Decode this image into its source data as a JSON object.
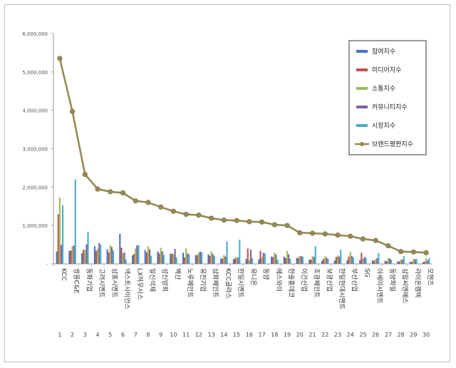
{
  "chart_data": {
    "type": "bar",
    "title": "",
    "xlabel": "",
    "ylabel": "",
    "ylim": [
      0,
      6000000
    ],
    "yticks": [
      "6,000,000",
      "5,000,000",
      "4,000,000",
      "3,000,000",
      "2,000,000",
      "1,000,000",
      "-"
    ],
    "categories": [
      "KCC",
      "쌍용C&E",
      "동화기업",
      "고려시멘트",
      "삼표시멘트",
      "넥스트사이언스",
      "LX하우시스",
      "일신석재",
      "성신양회",
      "벽산",
      "노루페인트",
      "유진기업",
      "삼화페인트",
      "KCC글라스",
      "한일시멘트",
      "유니온",
      "동양",
      "에스와이",
      "한솔홈데코",
      "이건산업",
      "조광페인트",
      "보광산업",
      "한일현대시멘트",
      "부산산업",
      "SG",
      "아세아시멘트",
      "동양파일",
      "삼일씨엔에스",
      "라이온켐텍",
      "모헨즈"
    ],
    "indices": [
      "1",
      "2",
      "3",
      "4",
      "5",
      "6",
      "7",
      "8",
      "9",
      "10",
      "11",
      "12",
      "13",
      "14",
      "15",
      "16",
      "17",
      "18",
      "19",
      "20",
      "21",
      "22",
      "23",
      "24",
      "25",
      "26",
      "27",
      "28",
      "29",
      "30"
    ],
    "series": [
      {
        "name": "참여지수",
        "color": "#4472c4",
        "values": [
          320000,
          340000,
          280000,
          460000,
          380000,
          780000,
          220000,
          360000,
          320000,
          260000,
          290000,
          230000,
          250000,
          140000,
          120000,
          130000,
          120000,
          190000,
          190000,
          150000,
          110000,
          80000,
          90000,
          100000,
          100000,
          90000,
          80000,
          70000,
          60000,
          50000
        ]
      },
      {
        "name": "미디어지수",
        "color": "#c0504d",
        "values": [
          1290000,
          350000,
          370000,
          340000,
          300000,
          420000,
          260000,
          300000,
          270000,
          270000,
          170000,
          230000,
          210000,
          140000,
          150000,
          400000,
          340000,
          180000,
          150000,
          160000,
          110000,
          130000,
          180000,
          190000,
          290000,
          80000,
          70000,
          60000,
          50000,
          60000
        ]
      },
      {
        "name": "소통지수",
        "color": "#9bbb59",
        "values": [
          1730000,
          460000,
          360000,
          390000,
          490000,
          280000,
          400000,
          460000,
          420000,
          250000,
          410000,
          290000,
          330000,
          230000,
          180000,
          100000,
          170000,
          290000,
          340000,
          210000,
          200000,
          200000,
          220000,
          310000,
          130000,
          120000,
          150000,
          120000,
          130000,
          150000
        ]
      },
      {
        "name": "커뮤니티지수",
        "color": "#8064a2",
        "values": [
          490000,
          480000,
          510000,
          540000,
          440000,
          300000,
          480000,
          380000,
          330000,
          390000,
          270000,
          320000,
          260000,
          190000,
          160000,
          370000,
          290000,
          240000,
          250000,
          200000,
          180000,
          160000,
          190000,
          210000,
          180000,
          150000,
          140000,
          110000,
          120000,
          90000
        ]
      },
      {
        "name": "시장지수",
        "color": "#4bacc6",
        "values": [
          1520000,
          2200000,
          840000,
          500000,
          350000,
          110000,
          490000,
          210000,
          240000,
          170000,
          250000,
          300000,
          210000,
          580000,
          630000,
          150000,
          270000,
          110000,
          130000,
          190000,
          460000,
          130000,
          370000,
          170000,
          160000,
          280000,
          110000,
          200000,
          130000,
          150000
        ]
      },
      {
        "name": "브랜드평판지수",
        "color": "#948a54",
        "type": "line",
        "values": [
          5350000,
          3970000,
          2330000,
          1950000,
          1880000,
          1850000,
          1640000,
          1600000,
          1480000,
          1370000,
          1290000,
          1270000,
          1190000,
          1140000,
          1130000,
          1100000,
          1090000,
          1020000,
          1000000,
          810000,
          800000,
          780000,
          750000,
          720000,
          650000,
          610000,
          470000,
          320000,
          310000,
          290000
        ]
      }
    ],
    "legend_position": "top-right",
    "grid": false
  }
}
